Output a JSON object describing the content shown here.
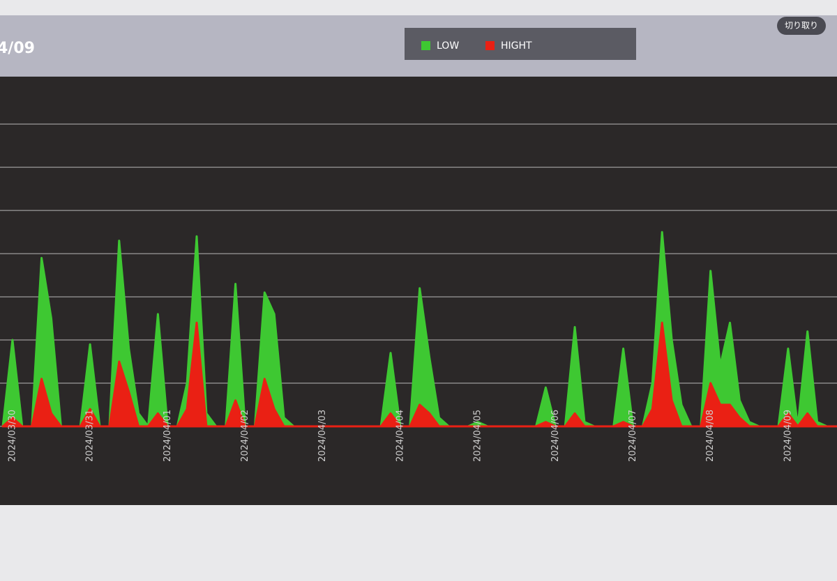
{
  "chart_data": {
    "type": "area",
    "title": "4/09",
    "categories": [
      null,
      "2024/03/30",
      null,
      null,
      null,
      null,
      null,
      null,
      null,
      "2024/03/31",
      null,
      null,
      null,
      null,
      null,
      null,
      null,
      "2024/04/01",
      null,
      null,
      null,
      null,
      null,
      null,
      null,
      "2024/04/02",
      null,
      null,
      null,
      null,
      null,
      null,
      null,
      "2024/04/03",
      null,
      null,
      null,
      null,
      null,
      null,
      null,
      "2024/04/04",
      null,
      null,
      null,
      null,
      null,
      null,
      null,
      "2024/04/05",
      null,
      null,
      null,
      null,
      null,
      null,
      null,
      "2024/04/06",
      null,
      null,
      null,
      null,
      null,
      null,
      null,
      "2024/04/07",
      null,
      null,
      null,
      null,
      null,
      null,
      null,
      "2024/04/08",
      null,
      null,
      null,
      null,
      null,
      null,
      null,
      "2024/04/09",
      null,
      null,
      null,
      null,
      null
    ],
    "series": [
      {
        "name": "LOW",
        "color": "#3ec832",
        "values": [
          0,
          2,
          0,
          0,
          3.9,
          2.5,
          0,
          0,
          0,
          1.9,
          0,
          0,
          4.3,
          1.8,
          0.3,
          0,
          2.6,
          0,
          0,
          1,
          4.4,
          0.3,
          0,
          0,
          3.3,
          0,
          0,
          3.1,
          2.6,
          0.2,
          0,
          0,
          0,
          0,
          0,
          0,
          0,
          0,
          0,
          0,
          1.7,
          0,
          0,
          3.2,
          1.6,
          0.2,
          0,
          0,
          0,
          0.1,
          0,
          0,
          0,
          0,
          0,
          0,
          0.9,
          0,
          0,
          2.3,
          0.1,
          0,
          0,
          0,
          1.8,
          0,
          0,
          1,
          4.5,
          2,
          0.5,
          0,
          0,
          3.6,
          1.4,
          2.4,
          0.6,
          0.1,
          0,
          0,
          0,
          1.8,
          0,
          2.2,
          0.1,
          0,
          0
        ]
      },
      {
        "name": "HIGHT",
        "color": "#ea2014",
        "values": [
          0,
          0.2,
          0,
          0,
          1.1,
          0.3,
          0,
          0,
          0,
          0.4,
          0,
          0,
          1.5,
          0.8,
          0,
          0,
          0.3,
          0,
          0,
          0.4,
          2.4,
          0,
          0,
          0,
          0.6,
          0,
          0,
          1.1,
          0.4,
          0,
          0,
          0,
          0,
          0,
          0,
          0,
          0,
          0,
          0,
          0,
          0.3,
          0,
          0,
          0.5,
          0.3,
          0,
          0,
          0,
          0,
          0,
          0,
          0,
          0,
          0,
          0,
          0,
          0.1,
          0,
          0,
          0.3,
          0,
          0,
          0,
          0,
          0.1,
          0,
          0,
          0.4,
          2.4,
          0.6,
          0,
          0,
          0,
          1,
          0.5,
          0.5,
          0.2,
          0,
          0,
          0,
          0,
          0.3,
          0,
          0.3,
          0,
          0,
          0
        ]
      }
    ],
    "ylim": [
      0,
      8.1
    ],
    "yticks": [
      0,
      1,
      2,
      3,
      4,
      5,
      6,
      7
    ],
    "grid": true
  },
  "toolbar": {
    "button": "切り取り"
  }
}
